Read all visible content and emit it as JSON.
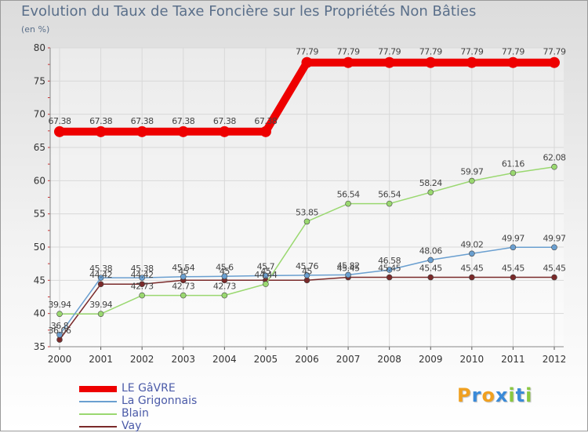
{
  "chart_data": {
    "type": "line",
    "title": "Evolution du Taux de Taxe Foncière sur les Propriétés Non Bâties",
    "ylabel": "(en %)",
    "xlabel": "",
    "ylim": [
      35,
      80
    ],
    "yticks": [
      35,
      40,
      45,
      50,
      55,
      60,
      65,
      70,
      75,
      80
    ],
    "categories": [
      "2000",
      "2001",
      "2002",
      "2003",
      "2004",
      "2005",
      "2006",
      "2007",
      "2008",
      "2009",
      "2010",
      "2011",
      "2012"
    ],
    "series": [
      {
        "name": "LE GâVRE",
        "color": "#ee0000",
        "values": [
          67.38,
          67.38,
          67.38,
          67.38,
          67.38,
          67.38,
          77.79,
          77.79,
          77.79,
          77.79,
          77.79,
          77.79,
          77.79
        ],
        "labels": [
          "67.38",
          "67.38",
          "67.38",
          "67.38",
          "67.38",
          "67.38",
          "77.79",
          "77.79",
          "77.79",
          "77.79",
          "77.79",
          "77.79",
          "77.79"
        ]
      },
      {
        "name": "La Grigonnais",
        "color": "#6a9fd0",
        "values": [
          36.8,
          45.38,
          45.38,
          45.54,
          45.6,
          45.7,
          45.76,
          45.82,
          46.58,
          48.06,
          49.02,
          49.97,
          49.97
        ],
        "labels": [
          "36.8",
          "45.38",
          "45.38",
          "45.54",
          "45.6",
          "45.7",
          "45.76",
          "45.82",
          "46.58",
          "48.06",
          "49.02",
          "49.97",
          "49.97"
        ]
      },
      {
        "name": "Blain",
        "color": "#9ad870",
        "values": [
          39.94,
          39.94,
          42.73,
          42.73,
          42.73,
          44.44,
          53.85,
          56.54,
          56.54,
          58.24,
          59.97,
          61.16,
          62.08
        ],
        "labels": [
          "39.94",
          "39.94",
          "42.73",
          "42.73",
          "42.73",
          "44.44",
          "53.85",
          "56.54",
          "56.54",
          "58.24",
          "59.97",
          "61.16",
          "62.08"
        ]
      },
      {
        "name": "Vay",
        "color": "#7a2a2a",
        "values": [
          36.06,
          44.42,
          44.42,
          45.0,
          45.0,
          45.0,
          45.0,
          45.45,
          45.45,
          45.45,
          45.45,
          45.45,
          45.45
        ],
        "labels": [
          "36.06",
          "44.42",
          "44.42",
          "45",
          "45",
          "45",
          "45",
          "45.45",
          "45.45",
          "45.45",
          "45.45",
          "45.45",
          "45.45"
        ]
      }
    ]
  },
  "logo": {
    "letters": [
      {
        "ch": "P",
        "color": "#f0a020"
      },
      {
        "ch": "r",
        "color": "#3a8ad8"
      },
      {
        "ch": "o",
        "color": "#f0a020"
      },
      {
        "ch": "x",
        "color": "#3a8ad8"
      },
      {
        "ch": "i",
        "color": "#8ac840"
      },
      {
        "ch": "t",
        "color": "#3a8ad8"
      },
      {
        "ch": "i",
        "color": "#8ac840"
      }
    ]
  }
}
